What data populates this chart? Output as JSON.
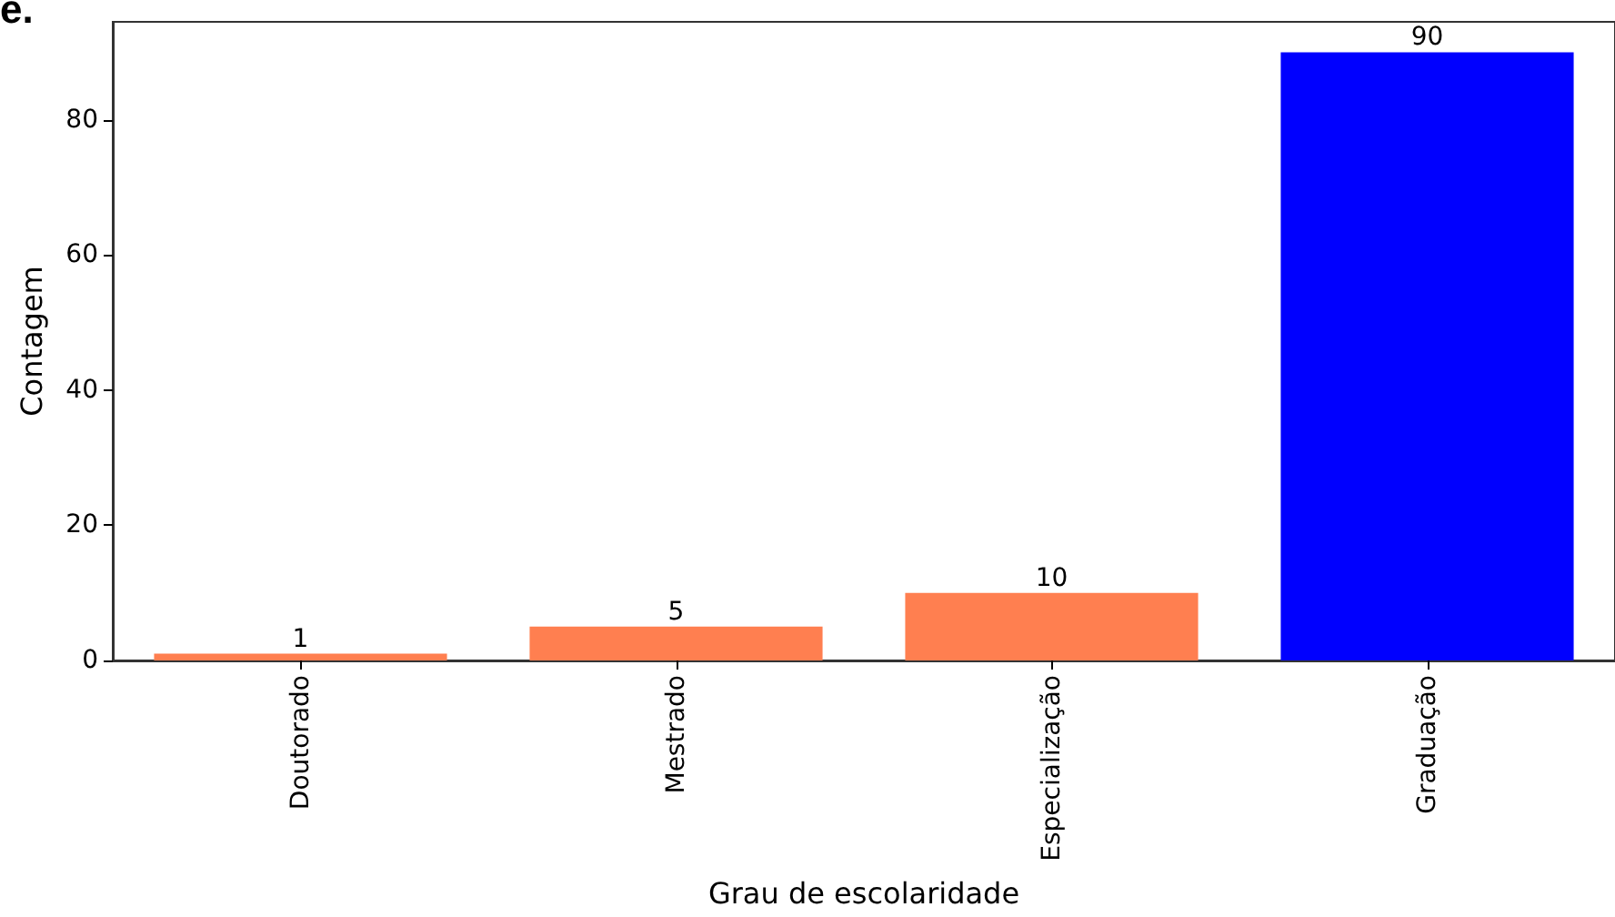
{
  "chart_data": {
    "type": "bar",
    "xlabel": "Grau de escolaridade",
    "ylabel": "Contagem",
    "annotations": [
      "e."
    ],
    "categories": [
      "Doutorado",
      "Mestrado",
      "Especialização",
      "Graduação"
    ],
    "values": [
      1,
      5,
      10,
      90
    ],
    "colors": [
      "#ff7f50",
      "#ff7f50",
      "#ff7f50",
      "#0000ff"
    ],
    "ylim": [
      0,
      94.5
    ],
    "yticks": [
      0,
      20,
      40,
      60,
      80
    ],
    "data_labels": true,
    "grid": false
  }
}
